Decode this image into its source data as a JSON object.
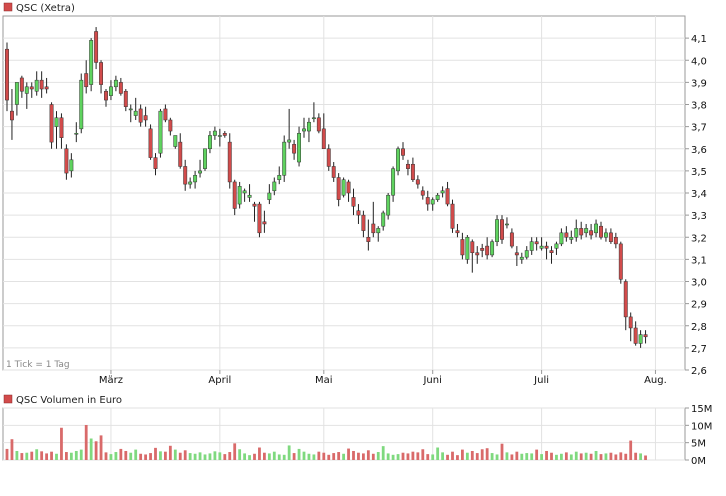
{
  "chart_data": [
    {
      "type": "candlestick",
      "legend": {
        "label": "QSC (Xetra)",
        "color": "#d24b4b"
      },
      "note": "1 Tick = 1 Tag",
      "ylim": [
        2.6,
        4.2
      ],
      "y_ticks": [
        "4,1",
        "4,0",
        "3,9",
        "3,8",
        "3,7",
        "3,6",
        "3,5",
        "3,4",
        "3,3",
        "3,2",
        "3,1",
        "3,0",
        "2,9",
        "2,8",
        "2,7",
        "2,6"
      ],
      "x_ticks": [
        {
          "label": "März",
          "day": 21
        },
        {
          "label": "April",
          "day": 43
        },
        {
          "label": "Mai",
          "day": 64
        },
        {
          "label": "Juni",
          "day": 86
        },
        {
          "label": "Juli",
          "day": 108
        },
        {
          "label": "Aug.",
          "day": 131
        }
      ],
      "grid": true,
      "up_color": "#5fd35f",
      "down_color": "#d24b4b",
      "candles": [
        [
          4.05,
          4.08,
          3.77,
          3.82
        ],
        [
          3.77,
          3.87,
          3.64,
          3.73
        ],
        [
          3.8,
          3.9,
          3.75,
          3.9
        ],
        [
          3.92,
          3.93,
          3.83,
          3.86
        ],
        [
          3.85,
          3.9,
          3.78,
          3.88
        ],
        [
          3.88,
          3.9,
          3.83,
          3.87
        ],
        [
          3.86,
          3.95,
          3.84,
          3.91
        ],
        [
          3.91,
          3.95,
          3.83,
          3.87
        ],
        [
          3.88,
          3.92,
          3.85,
          3.87
        ],
        [
          3.8,
          3.81,
          3.6,
          3.63
        ],
        [
          3.7,
          3.77,
          3.6,
          3.74
        ],
        [
          3.74,
          3.76,
          3.6,
          3.65
        ],
        [
          3.6,
          3.62,
          3.46,
          3.49
        ],
        [
          3.5,
          3.58,
          3.47,
          3.55
        ],
        [
          3.67,
          3.72,
          3.63,
          3.67
        ],
        [
          3.69,
          3.94,
          3.67,
          3.91
        ],
        [
          3.94,
          4.0,
          3.85,
          3.88
        ],
        [
          3.89,
          4.1,
          3.86,
          4.09
        ],
        [
          4.13,
          4.15,
          3.96,
          3.99
        ],
        [
          3.99,
          4.0,
          3.85,
          3.89
        ],
        [
          3.86,
          3.87,
          3.79,
          3.82
        ],
        [
          3.84,
          3.91,
          3.82,
          3.88
        ],
        [
          3.88,
          3.93,
          3.86,
          3.91
        ],
        [
          3.9,
          3.92,
          3.84,
          3.85
        ],
        [
          3.86,
          3.87,
          3.77,
          3.79
        ],
        [
          3.78,
          3.8,
          3.72,
          3.78
        ],
        [
          3.75,
          3.83,
          3.73,
          3.77
        ],
        [
          3.78,
          3.8,
          3.7,
          3.72
        ],
        [
          3.75,
          3.79,
          3.7,
          3.73
        ],
        [
          3.69,
          3.71,
          3.55,
          3.56
        ],
        [
          3.56,
          3.58,
          3.48,
          3.51
        ],
        [
          3.58,
          3.78,
          3.56,
          3.77
        ],
        [
          3.78,
          3.8,
          3.72,
          3.73
        ],
        [
          3.73,
          3.74,
          3.66,
          3.68
        ],
        [
          3.61,
          3.66,
          3.6,
          3.66
        ],
        [
          3.63,
          3.67,
          3.51,
          3.52
        ],
        [
          3.52,
          3.55,
          3.41,
          3.44
        ],
        [
          3.44,
          3.47,
          3.42,
          3.45
        ],
        [
          3.45,
          3.5,
          3.42,
          3.48
        ],
        [
          3.49,
          3.55,
          3.47,
          3.5
        ],
        [
          3.51,
          3.6,
          3.5,
          3.6
        ],
        [
          3.6,
          3.68,
          3.58,
          3.66
        ],
        [
          3.66,
          3.7,
          3.64,
          3.68
        ],
        [
          3.66,
          3.69,
          3.61,
          3.66
        ],
        [
          3.67,
          3.68,
          3.65,
          3.66
        ],
        [
          3.63,
          3.67,
          3.42,
          3.45
        ],
        [
          3.45,
          3.46,
          3.3,
          3.33
        ],
        [
          3.35,
          3.45,
          3.33,
          3.43
        ],
        [
          3.4,
          3.42,
          3.36,
          3.41
        ],
        [
          3.38,
          3.44,
          3.36,
          3.39
        ],
        [
          3.35,
          3.36,
          3.27,
          3.34
        ],
        [
          3.35,
          3.36,
          3.2,
          3.22
        ],
        [
          3.27,
          3.32,
          3.22,
          3.26
        ],
        [
          3.37,
          3.44,
          3.35,
          3.4
        ],
        [
          3.41,
          3.47,
          3.39,
          3.45
        ],
        [
          3.46,
          3.52,
          3.44,
          3.48
        ],
        [
          3.48,
          3.66,
          3.45,
          3.63
        ],
        [
          3.63,
          3.78,
          3.6,
          3.64
        ],
        [
          3.62,
          3.64,
          3.55,
          3.58
        ],
        [
          3.54,
          3.7,
          3.52,
          3.67
        ],
        [
          3.68,
          3.74,
          3.65,
          3.69
        ],
        [
          3.68,
          3.74,
          3.63,
          3.72
        ],
        [
          3.74,
          3.81,
          3.72,
          3.74
        ],
        [
          3.74,
          3.76,
          3.67,
          3.68
        ],
        [
          3.69,
          3.76,
          3.6,
          3.6
        ],
        [
          3.6,
          3.62,
          3.5,
          3.52
        ],
        [
          3.52,
          3.54,
          3.45,
          3.47
        ],
        [
          3.47,
          3.49,
          3.34,
          3.37
        ],
        [
          3.39,
          3.47,
          3.38,
          3.46
        ],
        [
          3.45,
          3.46,
          3.36,
          3.4
        ],
        [
          3.38,
          3.42,
          3.3,
          3.34
        ],
        [
          3.32,
          3.35,
          3.26,
          3.3
        ],
        [
          3.3,
          3.32,
          3.2,
          3.23
        ],
        [
          3.2,
          3.28,
          3.14,
          3.18
        ],
        [
          3.26,
          3.36,
          3.2,
          3.22
        ],
        [
          3.22,
          3.25,
          3.18,
          3.24
        ],
        [
          3.25,
          3.32,
          3.23,
          3.31
        ],
        [
          3.3,
          3.4,
          3.28,
          3.39
        ],
        [
          3.39,
          3.52,
          3.36,
          3.51
        ],
        [
          3.5,
          3.61,
          3.48,
          3.6
        ],
        [
          3.6,
          3.63,
          3.55,
          3.57
        ],
        [
          3.53,
          3.55,
          3.48,
          3.51
        ],
        [
          3.53,
          3.56,
          3.45,
          3.46
        ],
        [
          3.46,
          3.48,
          3.42,
          3.44
        ],
        [
          3.41,
          3.43,
          3.37,
          3.39
        ],
        [
          3.38,
          3.41,
          3.32,
          3.35
        ],
        [
          3.35,
          3.38,
          3.32,
          3.37
        ],
        [
          3.37,
          3.4,
          3.36,
          3.39
        ],
        [
          3.4,
          3.43,
          3.38,
          3.41
        ],
        [
          3.42,
          3.45,
          3.34,
          3.35
        ],
        [
          3.35,
          3.37,
          3.22,
          3.24
        ],
        [
          3.23,
          3.26,
          3.2,
          3.22
        ],
        [
          3.19,
          3.22,
          3.1,
          3.12
        ],
        [
          3.1,
          3.21,
          3.08,
          3.2
        ],
        [
          3.18,
          3.19,
          3.04,
          3.13
        ],
        [
          3.13,
          3.16,
          3.08,
          3.12
        ],
        [
          3.15,
          3.17,
          3.11,
          3.14
        ],
        [
          3.16,
          3.2,
          3.1,
          3.12
        ],
        [
          3.12,
          3.19,
          3.11,
          3.18
        ],
        [
          3.18,
          3.3,
          3.16,
          3.28
        ],
        [
          3.28,
          3.3,
          3.17,
          3.19
        ],
        [
          3.26,
          3.29,
          3.24,
          3.26
        ],
        [
          3.22,
          3.24,
          3.15,
          3.16
        ],
        [
          3.13,
          3.16,
          3.07,
          3.12
        ],
        [
          3.1,
          3.13,
          3.08,
          3.11
        ],
        [
          3.11,
          3.16,
          3.1,
          3.14
        ],
        [
          3.14,
          3.2,
          3.12,
          3.18
        ],
        [
          3.18,
          3.2,
          3.14,
          3.17
        ],
        [
          3.15,
          3.2,
          3.14,
          3.16
        ],
        [
          3.16,
          3.18,
          3.1,
          3.15
        ],
        [
          3.14,
          3.16,
          3.08,
          3.13
        ],
        [
          3.15,
          3.18,
          3.12,
          3.17
        ],
        [
          3.17,
          3.24,
          3.16,
          3.22
        ],
        [
          3.22,
          3.25,
          3.18,
          3.2
        ],
        [
          3.19,
          3.23,
          3.17,
          3.2
        ],
        [
          3.2,
          3.28,
          3.18,
          3.24
        ],
        [
          3.24,
          3.27,
          3.19,
          3.21
        ],
        [
          3.22,
          3.26,
          3.2,
          3.24
        ],
        [
          3.23,
          3.26,
          3.19,
          3.21
        ],
        [
          3.22,
          3.28,
          3.2,
          3.26
        ],
        [
          3.25,
          3.27,
          3.19,
          3.2
        ],
        [
          3.2,
          3.24,
          3.18,
          3.22
        ],
        [
          3.22,
          3.24,
          3.17,
          3.18
        ],
        [
          3.2,
          3.22,
          3.15,
          3.17
        ],
        [
          3.17,
          3.18,
          2.99,
          3.01
        ],
        [
          3.0,
          3.01,
          2.78,
          2.84
        ],
        [
          2.84,
          2.86,
          2.73,
          2.79
        ],
        [
          2.79,
          2.82,
          2.71,
          2.72
        ],
        [
          2.72,
          2.78,
          2.7,
          2.76
        ],
        [
          2.76,
          2.78,
          2.72,
          2.75
        ]
      ]
    },
    {
      "type": "bar",
      "legend": {
        "label": "QSC Volumen in Euro",
        "color": "#d24b4b"
      },
      "ylim": [
        0,
        15
      ],
      "y_ticks": [
        "15M",
        "10M",
        "5M",
        "0M"
      ],
      "volumes": [
        3.2,
        6.0,
        2.6,
        2.0,
        2.1,
        2.4,
        3.1,
        2.5,
        1.9,
        2.4,
        1.8,
        9.3,
        2.3,
        2.1,
        2.6,
        3.0,
        10.1,
        6.2,
        5.4,
        7.1,
        2.2,
        1.7,
        2.3,
        3.2,
        2.6,
        2.1,
        3.0,
        1.8,
        1.6,
        2.0,
        3.5,
        2.5,
        2.4,
        4.1,
        3.0,
        2.1,
        2.8,
        2.0,
        1.8,
        2.2,
        1.6,
        1.9,
        2.5,
        2.2,
        1.7,
        2.3,
        4.8,
        3.1,
        1.9,
        1.4,
        1.8,
        3.6,
        2.1,
        1.9,
        2.4,
        1.6,
        1.5,
        4.2,
        2.0,
        3.2,
        2.4,
        1.8,
        1.6,
        2.4,
        2.1,
        1.5,
        2.0,
        2.3,
        1.8,
        3.3,
        2.6,
        2.1,
        1.9,
        2.8,
        1.8,
        2.3,
        4.0,
        1.9,
        1.5,
        1.7,
        2.1,
        1.9,
        2.4,
        2.2,
        3.1,
        1.7,
        1.6,
        3.6,
        2.2,
        1.5,
        2.4,
        1.4,
        3.0,
        2.1,
        2.6,
        2.0,
        3.1,
        3.4,
        2.0,
        1.6,
        4.7,
        2.2,
        1.6,
        2.4,
        1.8,
        2.0,
        1.9,
        3.0,
        1.7,
        2.6,
        2.1,
        1.5,
        1.8,
        2.2,
        1.6,
        2.4,
        1.9,
        2.1,
        1.8,
        2.6,
        1.7,
        1.9,
        2.1,
        1.6,
        2.2,
        1.8,
        5.6,
        2.1,
        1.9,
        1.3
      ]
    }
  ]
}
